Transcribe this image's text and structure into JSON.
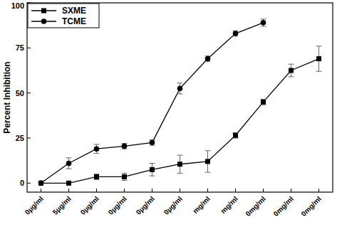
{
  "chart_data": {
    "type": "line",
    "y_label": "Percent Inhibition",
    "categories": [
      "0µg/ml",
      "5µg/ml",
      "0µg/ml",
      "0µg/ml",
      "0µg/ml",
      "0µg/ml",
      "mg/ml",
      "mg/ml",
      "0mg/ml",
      "0mg/ml",
      "0mg/ml"
    ],
    "series": [
      {
        "name": "SXME",
        "color": "#000000",
        "marker": "square",
        "values": [
          0,
          0,
          3.5,
          3.5,
          7.5,
          10.5,
          12,
          26.5,
          45,
          62.5,
          69
        ],
        "errors": [
          0,
          0,
          1.5,
          2,
          3.5,
          5,
          6,
          1.5,
          1.5,
          3.5,
          7
        ]
      },
      {
        "name": "TCME",
        "color": "#000000",
        "marker": "circle",
        "values": [
          0,
          11,
          19,
          20.5,
          22.5,
          52.5,
          69,
          83,
          89,
          null,
          null
        ],
        "errors": [
          0,
          3,
          2.5,
          1.5,
          1.5,
          3,
          1.5,
          1.5,
          2,
          null,
          null
        ]
      }
    ],
    "ylim": [
      -5,
      100
    ],
    "yticks": [
      0,
      25,
      50,
      75,
      100
    ],
    "grid": false,
    "legend": "upper left"
  }
}
